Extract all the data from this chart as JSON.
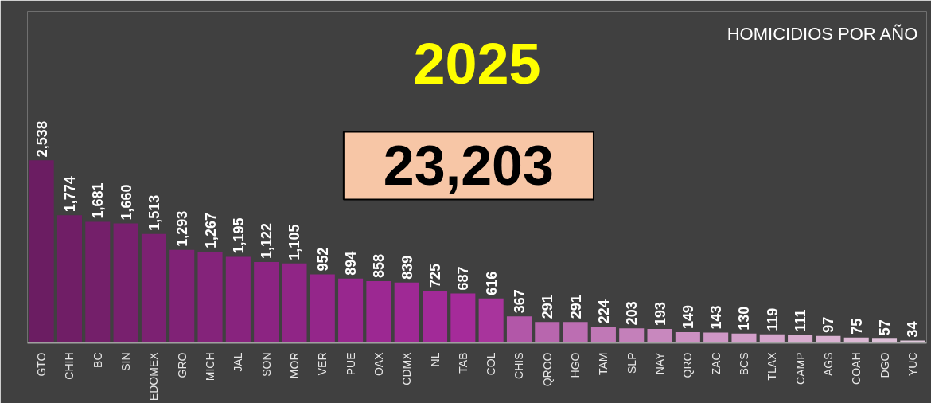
{
  "chart_data": {
    "type": "bar",
    "title": "HOMICIDIOS POR AÑO",
    "subtitle": "2025",
    "annotations": [
      "23,203"
    ],
    "categories": [
      "GTO",
      "CHIH",
      "BC",
      "SIN",
      "EDOMEX",
      "GRO",
      "MICH",
      "JAL",
      "SON",
      "MOR",
      "VER",
      "PUE",
      "OAX",
      "CDMX",
      "NL",
      "TAB",
      "COL",
      "CHIS",
      "QROO",
      "HGO",
      "TAM",
      "SLP",
      "NAY",
      "QRO",
      "ZAC",
      "BCS",
      "TLAX",
      "CAMP",
      "AGS",
      "COAH",
      "DGO",
      "YUC"
    ],
    "values": [
      2538,
      1774,
      1681,
      1660,
      1513,
      1293,
      1267,
      1195,
      1122,
      1105,
      952,
      894,
      858,
      839,
      725,
      687,
      616,
      367,
      291,
      291,
      224,
      203,
      193,
      149,
      143,
      130,
      119,
      111,
      97,
      75,
      57,
      34
    ],
    "value_labels": [
      "2,538",
      "1,774",
      "1,681",
      "1,660",
      "1,513",
      "1,293",
      "1,267",
      "1,195",
      "1,122",
      "1,105",
      "952",
      "894",
      "858",
      "839",
      "725",
      "687",
      "616",
      "367",
      "291",
      "291",
      "224",
      "203",
      "193",
      "149",
      "143",
      "130",
      "119",
      "111",
      "97",
      "75",
      "57",
      "34"
    ],
    "colors": [
      "#6b1d62",
      "#701e66",
      "#741f6a",
      "#78206e",
      "#7c2172",
      "#802276",
      "#84237a",
      "#88237e",
      "#8c2482",
      "#902586",
      "#94268a",
      "#98278e",
      "#9c2892",
      "#9f2995",
      "#a22a98",
      "#a52b9a",
      "#a8349c",
      "#b257a8",
      "#b866ae",
      "#bc6eb2",
      "#c078b6",
      "#c480ba",
      "#c888be",
      "#cc90c2",
      "#cf97c6",
      "#d29ec9",
      "#d5a5cc",
      "#d8accf",
      "#dab2d2",
      "#dcb8d4",
      "#dec0d8",
      "#e0c8dc"
    ]
  }
}
